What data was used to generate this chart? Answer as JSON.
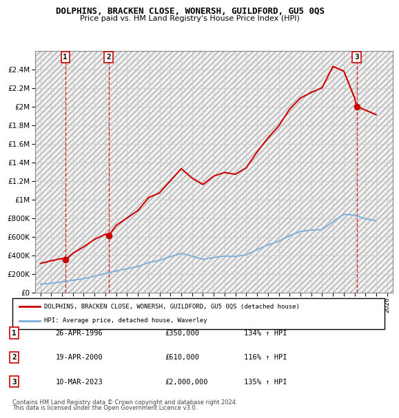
{
  "title": "DOLPHINS, BRACKEN CLOSE, WONERSH, GUILDFORD, GU5 0QS",
  "subtitle": "Price paid vs. HM Land Registry's House Price Index (HPI)",
  "legend_line1": "DOLPHINS, BRACKEN CLOSE, WONERSH, GUILDFORD, GU5 0QS (detached house)",
  "legend_line2": "HPI: Average price, detached house, Waverley",
  "footer1": "Contains HM Land Registry data © Crown copyright and database right 2024.",
  "footer2": "This data is licensed under the Open Government Licence v3.0.",
  "sales": [
    {
      "num": 1,
      "date": "26-APR-1996",
      "price": 350000,
      "pct": "134%",
      "year": 1996.31
    },
    {
      "num": 2,
      "date": "19-APR-2000",
      "price": 610000,
      "pct": "116%",
      "year": 2000.3
    },
    {
      "num": 3,
      "date": "10-MAR-2023",
      "price": 2000000,
      "pct": "135%",
      "year": 2023.19
    }
  ],
  "hpi_color": "#7aaddc",
  "price_color": "#cc0000",
  "sale_marker_color": "#cc0000",
  "ylim": [
    0,
    2600000
  ],
  "xlim": [
    1993.5,
    2026.5
  ],
  "yticks": [
    0,
    200000,
    400000,
    600000,
    800000,
    1000000,
    1200000,
    1400000,
    1600000,
    1800000,
    2000000,
    2200000,
    2400000
  ],
  "hpi_data_x": [
    1994,
    1995,
    1996,
    1997,
    1998,
    1999,
    2000,
    2001,
    2002,
    2003,
    2004,
    2005,
    2006,
    2007,
    2008,
    2009,
    2010,
    2011,
    2012,
    2013,
    2014,
    2015,
    2016,
    2017,
    2018,
    2019,
    2020,
    2021,
    2022,
    2023,
    2024,
    2025
  ],
  "hpi_data_y": [
    88000,
    98000,
    112000,
    130000,
    148000,
    172000,
    205000,
    230000,
    255000,
    278000,
    320000,
    345000,
    385000,
    420000,
    390000,
    355000,
    375000,
    390000,
    385000,
    405000,
    460000,
    510000,
    550000,
    610000,
    655000,
    670000,
    675000,
    760000,
    840000,
    830000,
    790000,
    770000
  ],
  "price_data_x": [
    1994,
    1995,
    1996,
    1996.31,
    1997,
    1998,
    1999,
    2000,
    2000.3,
    2001,
    2002,
    2003,
    2004,
    2005,
    2006,
    2007,
    2008,
    2009,
    2010,
    2011,
    2012,
    2013,
    2014,
    2015,
    2016,
    2017,
    2018,
    2019,
    2020,
    2021,
    2022,
    2023,
    2023.19,
    2024,
    2025
  ],
  "price_data_y": [
    310000,
    340000,
    365000,
    350000,
    420000,
    490000,
    570000,
    625000,
    610000,
    720000,
    800000,
    880000,
    1020000,
    1070000,
    1200000,
    1330000,
    1230000,
    1160000,
    1250000,
    1290000,
    1270000,
    1340000,
    1510000,
    1660000,
    1790000,
    1970000,
    2090000,
    2150000,
    2200000,
    2430000,
    2380000,
    2090000,
    2000000,
    1960000,
    1910000
  ]
}
